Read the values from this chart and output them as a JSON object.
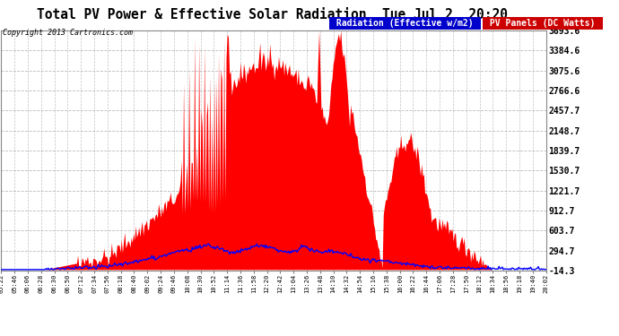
{
  "title": "Total PV Power & Effective Solar Radiation  Tue Jul 2  20:20",
  "copyright": "Copyright 2013 Cartronics.com",
  "legend_radiation": "Radiation (Effective w/m2)",
  "legend_pv": "PV Panels (DC Watts)",
  "bg_color": "#ffffff",
  "plot_bg_color": "#ffffff",
  "grid_color": "#aaaaaa",
  "title_color": "#000000",
  "radiation_color": "#0000ff",
  "pv_color": "#ff0000",
  "ymin": -14.3,
  "ymax": 3693.6,
  "yticks": [
    3693.6,
    3384.6,
    3075.6,
    2766.6,
    2457.7,
    2148.7,
    1839.7,
    1530.7,
    1221.7,
    912.7,
    603.7,
    294.7,
    -14.3
  ],
  "xtick_labels": [
    "05:22",
    "05:46",
    "06:06",
    "06:28",
    "06:30",
    "06:50",
    "07:12",
    "07:34",
    "07:56",
    "08:18",
    "08:40",
    "09:02",
    "09:24",
    "09:46",
    "10:08",
    "10:30",
    "10:52",
    "11:14",
    "11:36",
    "11:58",
    "12:20",
    "12:42",
    "13:04",
    "13:26",
    "13:48",
    "14:10",
    "14:32",
    "14:54",
    "15:16",
    "15:38",
    "16:00",
    "16:22",
    "16:44",
    "17:06",
    "17:28",
    "17:50",
    "18:12",
    "18:34",
    "18:56",
    "19:18",
    "19:40",
    "20:02"
  ]
}
